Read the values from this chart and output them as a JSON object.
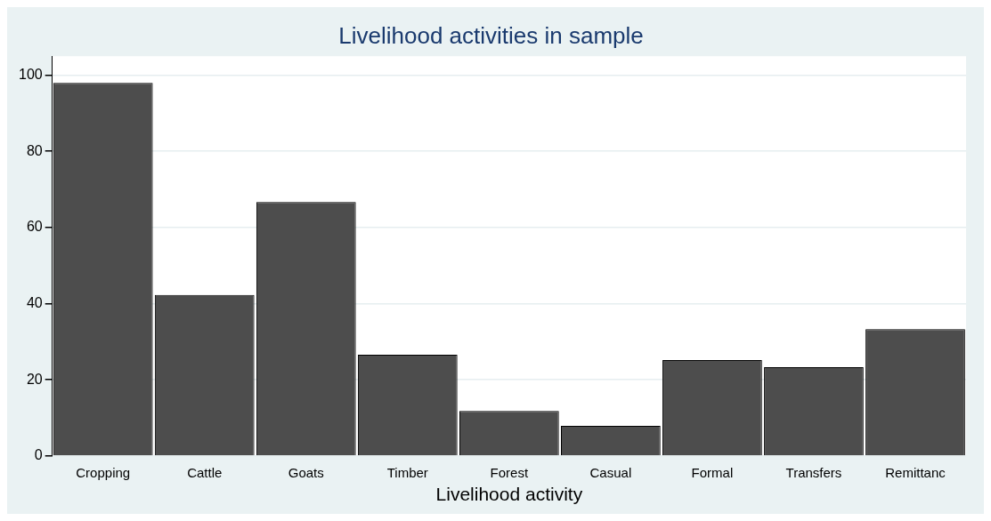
{
  "chart_data": {
    "type": "bar",
    "title": "Livelihood activities in sample",
    "xlabel": "Livelihood activity",
    "categories": [
      "Cropping",
      "Cattle",
      "Goats",
      "Timber",
      "Forest",
      "Casual",
      "Formal",
      "Transfers",
      "Remittanc"
    ],
    "values": [
      98,
      42.3,
      66.7,
      26.6,
      11.8,
      7.9,
      25.2,
      23.3,
      33.3
    ],
    "color": "#4d4d4d",
    "ylim": [
      0,
      105
    ],
    "yticks": [
      0,
      20,
      40,
      60,
      80,
      100
    ],
    "grid": "y",
    "legend": false
  }
}
